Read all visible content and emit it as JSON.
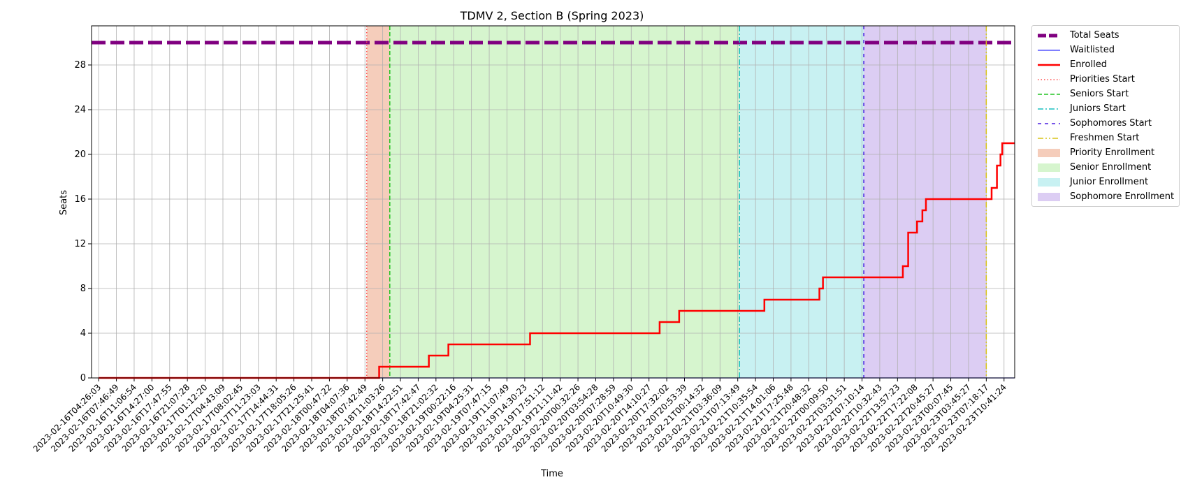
{
  "chart_data": {
    "type": "line",
    "title": "TDMV 2, Section B (Spring 2023)",
    "xlabel": "Time",
    "ylabel": "Seats",
    "ylim": [
      0,
      31.5
    ],
    "yticks": [
      0,
      4,
      8,
      12,
      16,
      20,
      24,
      28
    ],
    "grid": true,
    "legend_position": "outside-right-top",
    "x_tick_labels": [
      "2023-02-16T04:26:03",
      "2023-02-16T07:46:49",
      "2023-02-16T11:06:54",
      "2023-02-16T14:27:00",
      "2023-02-16T17:47:55",
      "2023-02-16T21:07:28",
      "2023-02-17T01:12:20",
      "2023-02-17T04:43:09",
      "2023-02-17T08:02:45",
      "2023-02-17T11:23:03",
      "2023-02-17T14:44:31",
      "2023-02-17T18:05:26",
      "2023-02-17T21:25:41",
      "2023-02-18T00:47:22",
      "2023-02-18T04:07:36",
      "2023-02-18T07:42:49",
      "2023-02-18T11:03:26",
      "2023-02-18T14:22:51",
      "2023-02-18T17:42:47",
      "2023-02-18T21:02:32",
      "2023-02-19T00:22:16",
      "2023-02-19T04:25:31",
      "2023-02-19T07:47:15",
      "2023-02-19T11:07:49",
      "2023-02-19T14:30:23",
      "2023-02-19T17:51:12",
      "2023-02-19T21:11:42",
      "2023-02-20T00:32:26",
      "2023-02-20T03:54:28",
      "2023-02-20T07:28:59",
      "2023-02-20T10:49:30",
      "2023-02-20T14:10:27",
      "2023-02-20T17:32:02",
      "2023-02-20T20:53:39",
      "2023-02-21T00:14:32",
      "2023-02-21T03:36:09",
      "2023-02-21T07:13:49",
      "2023-02-21T10:35:54",
      "2023-02-21T14:01:06",
      "2023-02-21T17:25:48",
      "2023-02-21T20:48:32",
      "2023-02-22T00:09:50",
      "2023-02-22T03:31:51",
      "2023-02-22T07:10:14",
      "2023-02-22T10:32:43",
      "2023-02-22T13:57:23",
      "2023-02-22T17:22:08",
      "2023-02-22T20:45:27",
      "2023-02-23T00:07:45",
      "2023-02-23T03:45:27",
      "2023-02-23T07:18:17",
      "2023-02-23T10:41:24"
    ],
    "total_seats": 30,
    "waitlisted": {
      "x": [
        0,
        51.6
      ],
      "y": [
        0,
        0
      ]
    },
    "enrolled": {
      "x": [
        0,
        15.8,
        15.8,
        18.6,
        18.6,
        19.7,
        19.7,
        24.3,
        24.3,
        31.6,
        31.6,
        32.7,
        32.7,
        37.5,
        37.5,
        40.6,
        40.6,
        40.8,
        40.8,
        45.3,
        45.3,
        45.6,
        45.6,
        46.1,
        46.1,
        46.4,
        46.4,
        46.6,
        46.6,
        46.9,
        46.9,
        50.3,
        50.3,
        50.6,
        50.6,
        50.8,
        50.8,
        50.9,
        50.9,
        51.0,
        51.0,
        51.6
      ],
      "y": [
        0,
        0,
        1,
        1,
        2,
        2,
        3,
        3,
        4,
        4,
        5,
        5,
        6,
        6,
        7,
        7,
        8,
        8,
        9,
        9,
        10,
        10,
        13,
        13,
        14,
        14,
        15,
        15,
        16,
        16,
        16,
        16,
        17,
        17,
        19,
        19,
        20,
        20,
        21,
        21,
        21,
        21
      ]
    },
    "vertical_lines": [
      {
        "name": "Priorities Start",
        "x": 15.1,
        "color": "#ff4d4d",
        "dash": "1.5,3"
      },
      {
        "name": "Seniors Start",
        "x": 16.4,
        "color": "#22c422",
        "dash": "6,3"
      },
      {
        "name": "Juniors Start",
        "x": 36.1,
        "color": "#1bbfbf",
        "dash": "8,3,2,3"
      },
      {
        "name": "Sophomores Start",
        "x": 43.1,
        "color": "#4b1fe0",
        "dash": "5,5"
      },
      {
        "name": "Freshmen Start",
        "x": 50.0,
        "color": "#d9c316",
        "dash": "8,3,2,3,2,3"
      }
    ],
    "spans": [
      {
        "name": "Priority Enrollment",
        "from": 15.1,
        "to": 16.4,
        "color": "#f5cdbb"
      },
      {
        "name": "Senior Enrollment",
        "from": 16.4,
        "to": 36.1,
        "color": "#d6f5ce"
      },
      {
        "name": "Junior Enrollment",
        "from": 36.1,
        "to": 43.1,
        "color": "#c8f1f2"
      },
      {
        "name": "Sophomore Enrollment",
        "from": 43.1,
        "to": 50.0,
        "color": "#dccdf3"
      }
    ],
    "legend": [
      "Total Seats",
      "Waitlisted",
      "Enrolled",
      "Priorities Start",
      "Seniors Start",
      "Juniors Start",
      "Sophomores Start",
      "Freshmen Start",
      "Priority Enrollment",
      "Senior Enrollment",
      "Junior Enrollment",
      "Sophomore Enrollment"
    ],
    "colors": {
      "total_seats": "#800080",
      "waitlisted": "#3333ff",
      "enrolled": "#ff0000"
    }
  }
}
